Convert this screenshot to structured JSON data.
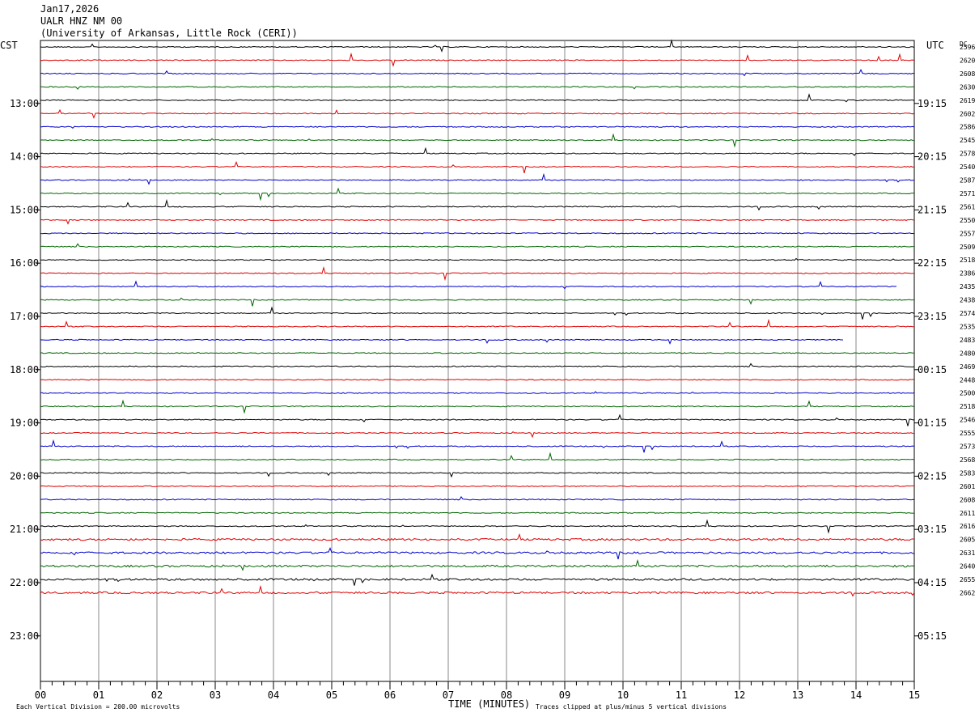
{
  "header": {
    "date": "Jan17,2026",
    "station": "UALR HNZ NM 00",
    "institution": "(University of Arkansas, Little Rock (CERI))"
  },
  "chart_data": {
    "type": "line",
    "left_timezone": "CST",
    "right_timezone": "UTC",
    "dc_label": "DC",
    "xlabel": "TIME (MINUTES)",
    "x_ticks": [
      "00",
      "01",
      "02",
      "03",
      "04",
      "05",
      "06",
      "07",
      "08",
      "09",
      "10",
      "11",
      "12",
      "13",
      "14",
      "15"
    ],
    "xlim": [
      0,
      15
    ],
    "left_hour_labels": [
      "13:00",
      "14:00",
      "15:00",
      "16:00",
      "17:00",
      "18:00",
      "19:00",
      "20:00",
      "21:00",
      "22:00",
      "23:00"
    ],
    "right_hour_labels": [
      "19:15",
      "20:15",
      "21:15",
      "22:15",
      "23:15",
      "00:15",
      "01:15",
      "02:15",
      "03:15",
      "04:15",
      "05:15"
    ],
    "hour_label_first_trace": 4,
    "traces_per_hour": 4,
    "trace_slots": 48,
    "trace_colors": [
      "#000000",
      "#dd0000",
      "#0000cc",
      "#006600"
    ],
    "dc_offsets": [
      "2596",
      "2620",
      "2608",
      "2630",
      "2619",
      "2602",
      "2586",
      "2545",
      "2578",
      "2540",
      "2587",
      "2571",
      "2561",
      "2550",
      "2557",
      "2509",
      "2518",
      "2386",
      "2435",
      "2438",
      "2574",
      "2535",
      "2483",
      "2480",
      "2469",
      "2448",
      "2500",
      "2518",
      "2546",
      "2555",
      "2573",
      "2568",
      "2583",
      "2601",
      "2608",
      "2611",
      "2616",
      "2605",
      "2631",
      "2640",
      "2655",
      "2662"
    ],
    "trace_end_minutes": [
      15,
      15,
      15,
      15,
      15,
      15,
      15,
      15,
      15,
      15,
      15,
      15,
      15,
      15,
      15,
      15,
      15,
      15,
      14.7,
      15,
      15,
      15,
      13.8,
      15,
      15,
      15,
      15,
      15,
      15,
      15,
      15,
      15,
      15,
      15,
      15,
      15,
      15,
      15,
      15,
      15,
      15,
      15
    ],
    "scale_note": "Each Vertical Division =  200.00 microvolts",
    "clip_note": "Traces clipped at plus/minus 5 vertical divisions"
  }
}
